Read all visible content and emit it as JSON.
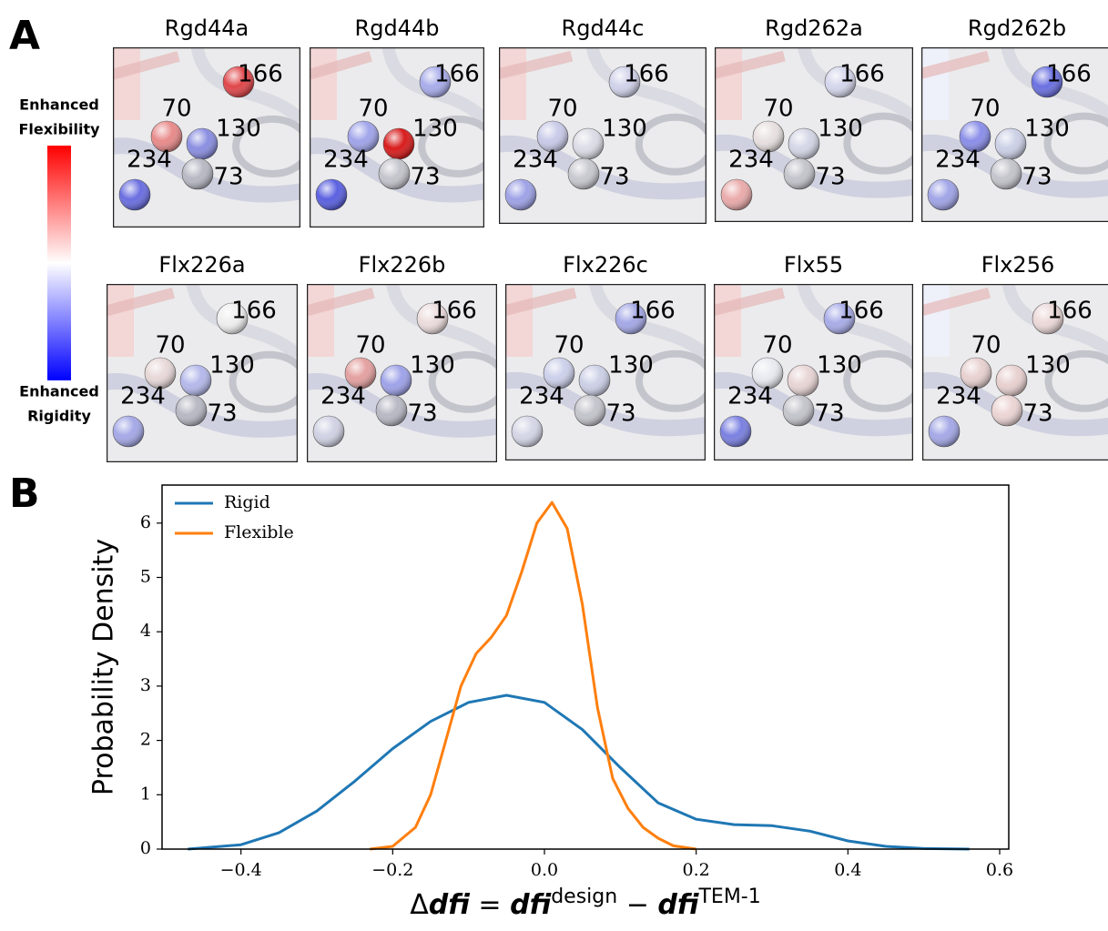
{
  "panel_a": {
    "label": "A",
    "colorbar_top": [
      "Enhanced",
      "Flexibility"
    ],
    "colorbar_bottom": [
      "Enhanced",
      "Rigidity"
    ],
    "residue_labels": [
      "166",
      "70",
      "130",
      "234",
      "73"
    ],
    "panels": [
      {
        "title": "Rgd44a"
      },
      {
        "title": "Rgd44b"
      },
      {
        "title": "Rgd44c"
      },
      {
        "title": "Rgd262a"
      },
      {
        "title": "Rgd262b"
      },
      {
        "title": "Flx226a"
      },
      {
        "title": "Flx226b"
      },
      {
        "title": "Flx226c"
      },
      {
        "title": "Flx55"
      },
      {
        "title": "Flx256"
      }
    ]
  },
  "chart_data": {
    "type": "line",
    "panel_label": "B",
    "ylabel": "Probability Density",
    "xlabel": [
      "Δ",
      "dfi",
      " = ",
      "dfi",
      "design",
      " − ",
      "dfi",
      "TEM-1"
    ],
    "xlim": [
      -0.504,
      0.612
    ],
    "ylim": [
      0,
      6.7
    ],
    "xticks": [
      {
        "value": -0.4,
        "label": "−0.4"
      },
      {
        "value": -0.2,
        "label": "−0.2"
      },
      {
        "value": 0,
        "label": "0.0"
      },
      0.2,
      0.4,
      0.6
    ],
    "yticks": [
      0,
      1,
      2,
      3,
      4,
      5,
      6
    ],
    "legend": "upper left",
    "series": [
      {
        "name": "Rigid",
        "color": "#1f77b4",
        "x": [
          -0.47,
          -0.4,
          -0.35,
          -0.3,
          -0.25,
          -0.2,
          -0.15,
          -0.1,
          -0.05,
          0.0,
          0.05,
          0.1,
          0.15,
          0.2,
          0.25,
          0.3,
          0.35,
          0.4,
          0.45,
          0.5,
          0.56
        ],
        "values": [
          0,
          0.08,
          0.3,
          0.7,
          1.25,
          1.85,
          2.35,
          2.7,
          2.83,
          2.7,
          2.2,
          1.5,
          0.85,
          0.55,
          0.45,
          0.43,
          0.33,
          0.15,
          0.05,
          0.01,
          0
        ]
      },
      {
        "name": "Flexible",
        "color": "#ff7f0e",
        "x": [
          -0.23,
          -0.2,
          -0.17,
          -0.15,
          -0.13,
          -0.11,
          -0.09,
          -0.07,
          -0.05,
          -0.03,
          -0.01,
          0.01,
          0.03,
          0.05,
          0.07,
          0.09,
          0.11,
          0.13,
          0.15,
          0.17,
          0.2
        ],
        "values": [
          0,
          0.05,
          0.4,
          1.0,
          2.0,
          3.0,
          3.6,
          3.9,
          4.3,
          5.1,
          6.0,
          6.38,
          5.9,
          4.5,
          2.6,
          1.3,
          0.75,
          0.4,
          0.2,
          0.06,
          0
        ]
      }
    ]
  }
}
